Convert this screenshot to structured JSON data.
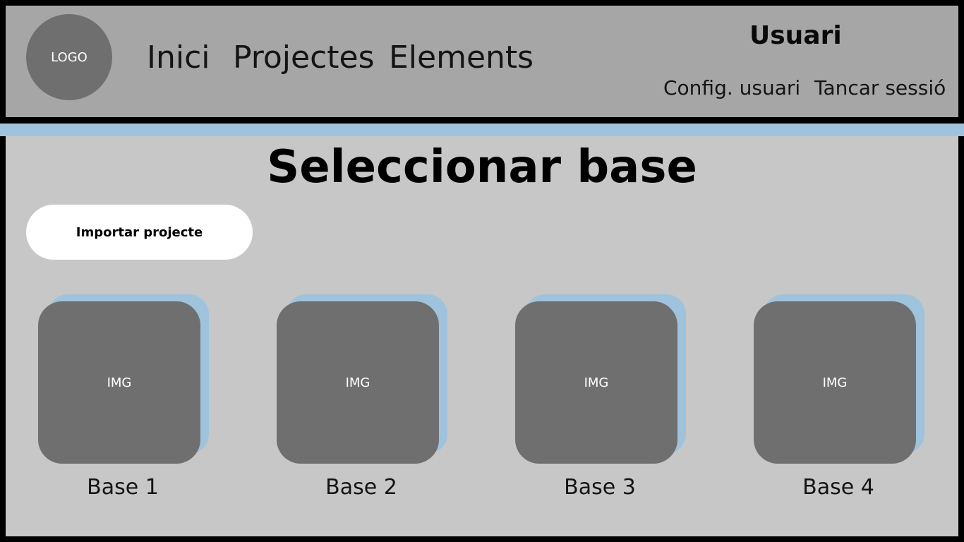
{
  "header": {
    "logo_text": "LOGO",
    "nav": {
      "inici": "Inici",
      "projectes": "Projectes",
      "elements": "Elements"
    },
    "user": {
      "name": "Usuari",
      "config_label": "Config. usuari",
      "logout_label": "Tancar sessió"
    }
  },
  "main": {
    "title": "Seleccionar base",
    "import_button_label": "Importar projecte",
    "bases": [
      {
        "image_placeholder": "IMG",
        "label": "Base 1"
      },
      {
        "image_placeholder": "IMG",
        "label": "Base 2"
      },
      {
        "image_placeholder": "IMG",
        "label": "Base 3"
      },
      {
        "image_placeholder": "IMG",
        "label": "Base 4"
      }
    ]
  },
  "colors": {
    "header_background": "#a6a6a6",
    "content_background": "#c7c7c7",
    "accent": "#9fc3dc",
    "placeholder_gray": "#6f6f6f",
    "frame": "#000000"
  }
}
